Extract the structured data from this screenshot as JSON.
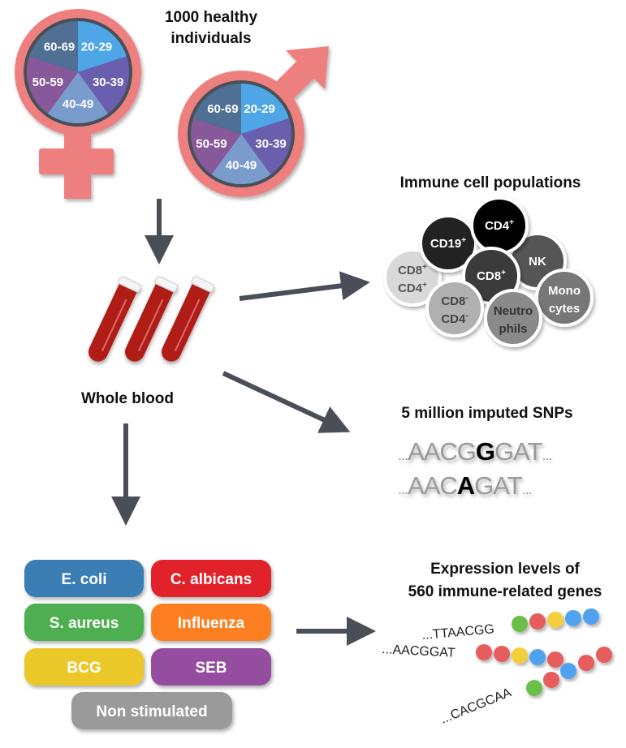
{
  "title": {
    "line1": "1000 healthy",
    "line2": "individuals"
  },
  "age_groups": [
    "20-29",
    "30-39",
    "40-49",
    "50-59",
    "60-69"
  ],
  "colors": {
    "symbol": "#ee7f7f",
    "arrow": "#4a4f57",
    "blood": "#b01d17",
    "age": [
      "#4fa6e6",
      "#6a5fae",
      "#7a9ccc",
      "#87599a",
      "#4f6f94"
    ],
    "dot_green": "#6abf4b",
    "dot_red": "#e65d5d",
    "dot_yellow": "#f2cf3b",
    "dot_blue": "#4fa3ee"
  },
  "sample": {
    "label": "Whole blood"
  },
  "cells": {
    "title": "Immune cell populations",
    "items": [
      {
        "l1": "CD8",
        "s1": "+",
        "l2": "CD4",
        "s2": "+"
      },
      {
        "l1": "CD19",
        "s1": "+"
      },
      {
        "l1": "NK"
      },
      {
        "l1": "CD4",
        "s1": "+"
      },
      {
        "l1": "CD8",
        "s1": "+"
      },
      {
        "l1": "Mono",
        "l2": "cytes"
      },
      {
        "l1": "CD8",
        "s1": "-",
        "l2": "CD4",
        "s2": "-"
      },
      {
        "l1": "Neutro",
        "l2": "phils"
      }
    ]
  },
  "snps": {
    "title": "5 million imputed SNPs",
    "seq1": {
      "pre": "AACG",
      "var": "G",
      "post": "GAT"
    },
    "seq2": {
      "pre": "AAC",
      "var": "A",
      "post": "GAT"
    },
    "dots": "..."
  },
  "stimuli": [
    "E. coli",
    "C. albicans",
    "S. aureus",
    "Influenza",
    "BCG",
    "SEB",
    "Non stimulated"
  ],
  "expression": {
    "line1": "Expression levels of",
    "line2": "560 immune-related genes",
    "reads": [
      "...TTAACGG",
      "...AACGGAT",
      "...CACGCAA"
    ]
  }
}
